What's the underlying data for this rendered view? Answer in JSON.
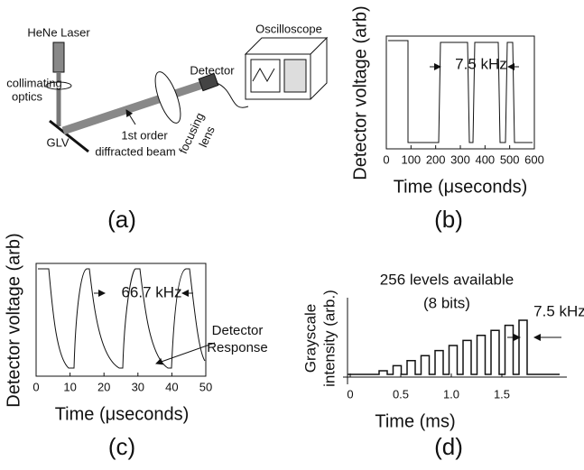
{
  "panel_a": {
    "label": "(a)",
    "laser": "HeNe Laser",
    "collimating": [
      "collimating",
      "optics"
    ],
    "glv": "GLV",
    "beam": [
      "1st order",
      "diffracted beam"
    ],
    "lens": [
      "focusing",
      "lens"
    ],
    "detector": "Detector",
    "scope": "Oscilloscope"
  },
  "panel_b": {
    "label": "(b)",
    "ylabel": "Detector voltage (arb)",
    "xlabel": "Time (μseconds)",
    "annotation": "7.5 kHz",
    "xlim": [
      0,
      600
    ],
    "xticks": [
      0,
      100,
      200,
      300,
      400,
      500,
      600
    ]
  },
  "panel_c": {
    "label": "(c)",
    "ylabel": "Detector voltage (arb)",
    "xlabel": "Time (μseconds)",
    "annotation": "66.7 kHz",
    "response": [
      "Detector",
      "Response"
    ],
    "xlim": [
      0,
      50
    ],
    "xticks": [
      0,
      10,
      20,
      30,
      40,
      50
    ]
  },
  "panel_d": {
    "label": "(d)",
    "ylabel": [
      "Grayscale",
      "intensity (arb.)"
    ],
    "xlabel": "Time (ms)",
    "levels": "256 levels available",
    "bits": "(8 bits)",
    "annotation": "7.5 kHz",
    "xlim": [
      0,
      1.5
    ],
    "xticks": [
      0,
      0.5,
      {
        "value": 1,
        "label": "1.0"
      },
      1.5
    ]
  }
}
